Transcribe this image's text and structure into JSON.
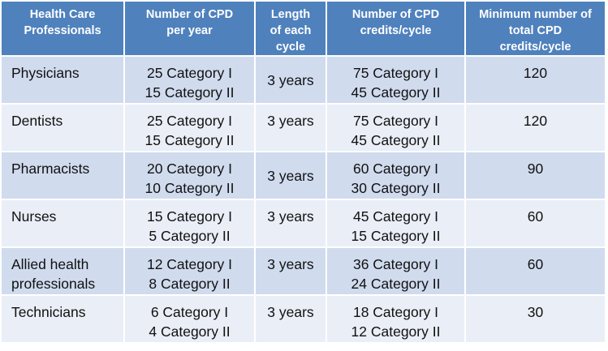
{
  "headers": [
    "Health Care Professionals",
    "Number of CPD per year",
    "Length of each cycle",
    "Number of CPD credits/cycle",
    "Minimum number of total CPD credits/cycle"
  ],
  "rows": [
    {
      "profession": "Physicians",
      "per_year": [
        "25 Category I",
        "15 Category II"
      ],
      "length": "3 years",
      "credits": [
        "75 Category I",
        "45 Category II"
      ],
      "minimum": "120"
    },
    {
      "profession": "Dentists",
      "per_year": [
        "25 Category I",
        "15 Category II"
      ],
      "length": "3 years",
      "credits": [
        "75 Category I",
        "45 Category II"
      ],
      "minimum": "120"
    },
    {
      "profession": "Pharmacists",
      "per_year": [
        "20 Category I",
        "10 Category II"
      ],
      "length": "3 years",
      "credits": [
        "60 Category I",
        "30 Category II"
      ],
      "minimum": "90"
    },
    {
      "profession": "Nurses",
      "per_year": [
        "15 Category I",
        "5 Category II"
      ],
      "length": "3 years",
      "credits": [
        "45 Category I",
        "15 Category II"
      ],
      "minimum": "60"
    },
    {
      "profession": "Allied health professionals",
      "per_year": [
        "12 Category I",
        "8 Category II"
      ],
      "length": "3 years",
      "credits": [
        "36 Category I",
        "24 Category II"
      ],
      "minimum": "60"
    },
    {
      "profession": "Technicians",
      "per_year": [
        "6 Category I",
        "4 Category II"
      ],
      "length": "3 years",
      "credits": [
        "18 Category I",
        "12 Category II"
      ],
      "minimum": "30"
    }
  ]
}
